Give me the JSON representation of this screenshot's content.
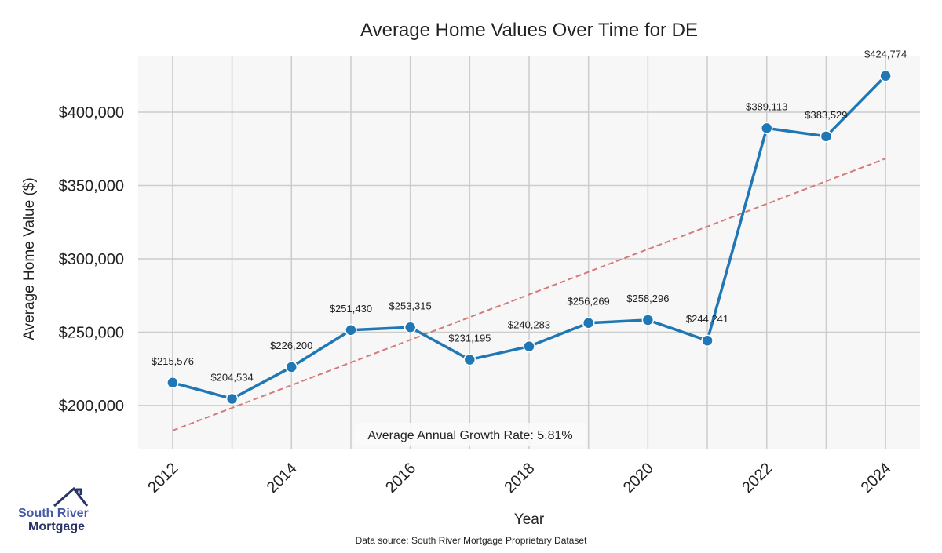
{
  "chart_data": {
    "type": "line",
    "title": "Average Home Values Over Time for DE",
    "xlabel": "Year",
    "ylabel": "Average Home Value ($)",
    "x": [
      2012,
      2013,
      2014,
      2015,
      2016,
      2017,
      2018,
      2019,
      2020,
      2021,
      2022,
      2023,
      2024
    ],
    "series": [
      {
        "name": "Average Home Value",
        "color": "#1f77b4",
        "values": [
          215576,
          204534,
          226200,
          251430,
          253315,
          231195,
          240283,
          256269,
          258296,
          244241,
          389113,
          383529,
          424774
        ],
        "labels": [
          "$215,576",
          "$204,534",
          "$226,200",
          "$251,430",
          "$253,315",
          "$231,195",
          "$240,283",
          "$256,269",
          "$258,296",
          "$244,241",
          "$389,113",
          "$383,529",
          "$424,774"
        ]
      },
      {
        "name": "Trend",
        "color": "#d62728",
        "style": "dashed",
        "x": [
          2012,
          2024
        ],
        "values": [
          182900,
          368400
        ]
      }
    ],
    "xticks": [
      "2012",
      "2014",
      "2016",
      "2018",
      "2020",
      "2022",
      "2024"
    ],
    "yticks": [
      200000,
      250000,
      300000,
      350000,
      400000
    ],
    "ytick_labels": [
      "$200,000",
      "$250,000",
      "$300,000",
      "$350,000",
      "$400,000"
    ],
    "xlim": [
      2011.42,
      2024.58
    ],
    "ylim": [
      170000,
      438000
    ],
    "grid": true,
    "annotation": "Average Annual Growth Rate: 5.81%"
  },
  "footer": {
    "source": "Data source: South River Mortgage Proprietary Dataset"
  },
  "logo": {
    "line1": "South River",
    "line2": "Mortgage"
  }
}
